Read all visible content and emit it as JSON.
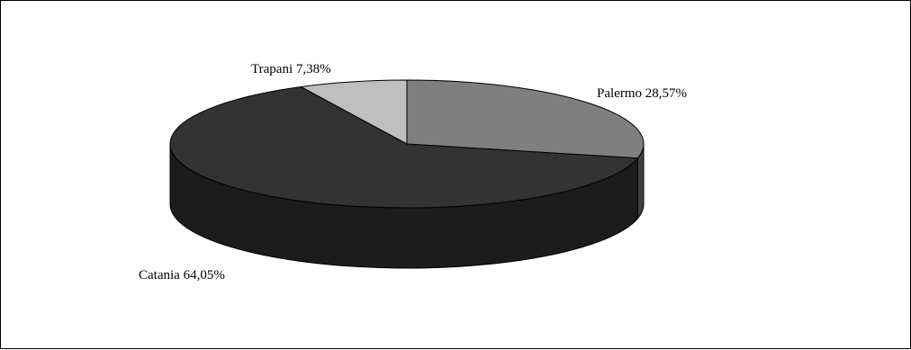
{
  "chart_data": {
    "type": "pie",
    "style": "3d-exploded-none",
    "title": "",
    "legend": "none",
    "slices": [
      {
        "label": "Palermo",
        "value": 28.57,
        "display": "Palermo 28,57%",
        "top_color": "#7f7f7f",
        "side_color": "#3f3f3f"
      },
      {
        "label": "Catania",
        "value": 64.05,
        "display": "Catania 64,05%",
        "top_color": "#333333",
        "side_color": "#1c1c1c"
      },
      {
        "label": "Trapani",
        "value": 7.38,
        "display": "Trapani 7,38%",
        "top_color": "#bfbfbf",
        "side_color": "#7a7a7a"
      }
    ]
  }
}
